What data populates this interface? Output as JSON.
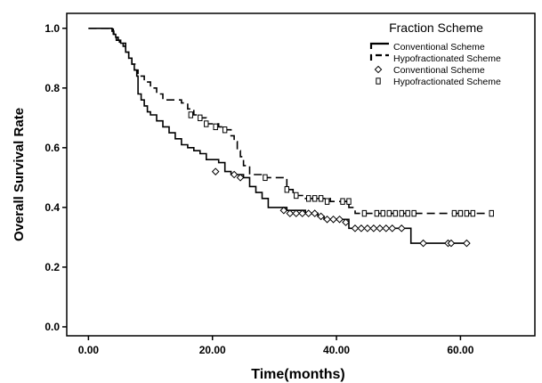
{
  "chart_data": {
    "type": "line",
    "title": "",
    "xlabel": "Time(months)",
    "ylabel": "Overall Survival Rate",
    "xlim": [
      -3.5,
      72
    ],
    "ylim": [
      -0.03,
      1.05
    ],
    "x_ticks": [
      0,
      20,
      40,
      60
    ],
    "x_tick_labels": [
      "0.00",
      "20.00",
      "40.00",
      "60.00"
    ],
    "y_ticks": [
      0,
      0.2,
      0.4,
      0.6,
      0.8,
      1.0
    ],
    "y_tick_labels": [
      "0.0",
      "0.2",
      "0.4",
      "0.6",
      "0.8",
      "1.0"
    ],
    "grid": false,
    "legend_title": "Fraction Scheme",
    "legend_position": "top-right",
    "legend": [
      {
        "label": "Conventional Scheme",
        "kind": "line-solid"
      },
      {
        "label": "Hypofractionated Scheme",
        "kind": "line-dashed"
      },
      {
        "label": "Conventional Scheme",
        "kind": "marker-diamond"
      },
      {
        "label": "Hypofractionated Scheme",
        "kind": "marker-square"
      }
    ],
    "series": [
      {
        "name": "Conventional Scheme",
        "style": "solid",
        "censor_marker": "diamond",
        "steps": [
          [
            0,
            1.0
          ],
          [
            3.8,
            0.99
          ],
          [
            4.1,
            0.98
          ],
          [
            4.4,
            0.97
          ],
          [
            4.8,
            0.96
          ],
          [
            5.2,
            0.95
          ],
          [
            5.6,
            0.94
          ],
          [
            6.0,
            0.92
          ],
          [
            6.5,
            0.9
          ],
          [
            7.0,
            0.88
          ],
          [
            7.4,
            0.86
          ],
          [
            7.8,
            0.84
          ],
          [
            8.0,
            0.78
          ],
          [
            8.5,
            0.76
          ],
          [
            9.0,
            0.74
          ],
          [
            9.5,
            0.72
          ],
          [
            10.0,
            0.71
          ],
          [
            11.0,
            0.69
          ],
          [
            12.0,
            0.67
          ],
          [
            13.0,
            0.65
          ],
          [
            14.0,
            0.63
          ],
          [
            15.0,
            0.61
          ],
          [
            16.0,
            0.6
          ],
          [
            17.0,
            0.59
          ],
          [
            18.0,
            0.58
          ],
          [
            19.0,
            0.56
          ],
          [
            21.0,
            0.55
          ],
          [
            22.0,
            0.52
          ],
          [
            23.0,
            0.51
          ],
          [
            25.0,
            0.5
          ],
          [
            26.0,
            0.47
          ],
          [
            27.0,
            0.45
          ],
          [
            28.0,
            0.43
          ],
          [
            29.0,
            0.4
          ],
          [
            32.0,
            0.39
          ],
          [
            35.0,
            0.38
          ],
          [
            37.0,
            0.37
          ],
          [
            38.0,
            0.36
          ],
          [
            42.0,
            0.33
          ],
          [
            52.0,
            0.28
          ],
          [
            61.0,
            0.28
          ]
        ],
        "censored": [
          [
            20.5,
            0.52
          ],
          [
            23.5,
            0.51
          ],
          [
            24.5,
            0.5
          ],
          [
            31.5,
            0.39
          ],
          [
            32.5,
            0.38
          ],
          [
            33.5,
            0.38
          ],
          [
            34.5,
            0.38
          ],
          [
            35.5,
            0.38
          ],
          [
            36.5,
            0.38
          ],
          [
            37.5,
            0.37
          ],
          [
            38.5,
            0.36
          ],
          [
            39.5,
            0.36
          ],
          [
            40.5,
            0.36
          ],
          [
            41.5,
            0.35
          ],
          [
            43.0,
            0.33
          ],
          [
            44.0,
            0.33
          ],
          [
            45.0,
            0.33
          ],
          [
            46.0,
            0.33
          ],
          [
            47.0,
            0.33
          ],
          [
            48.0,
            0.33
          ],
          [
            49.0,
            0.33
          ],
          [
            50.5,
            0.33
          ],
          [
            54.0,
            0.28
          ],
          [
            58.0,
            0.28
          ],
          [
            58.5,
            0.28
          ],
          [
            61.0,
            0.28
          ]
        ]
      },
      {
        "name": "Hypofractionated Scheme",
        "style": "dashed",
        "censor_marker": "square",
        "steps": [
          [
            0,
            1.0
          ],
          [
            4.0,
            0.98
          ],
          [
            4.5,
            0.96
          ],
          [
            5.0,
            0.95
          ],
          [
            6.0,
            0.92
          ],
          [
            6.5,
            0.9
          ],
          [
            7.0,
            0.88
          ],
          [
            7.5,
            0.86
          ],
          [
            8.0,
            0.84
          ],
          [
            9.0,
            0.82
          ],
          [
            10.0,
            0.8
          ],
          [
            11.0,
            0.78
          ],
          [
            12.0,
            0.76
          ],
          [
            15.0,
            0.75
          ],
          [
            16.0,
            0.73
          ],
          [
            17.0,
            0.71
          ],
          [
            18.0,
            0.7
          ],
          [
            19.0,
            0.68
          ],
          [
            21.0,
            0.67
          ],
          [
            22.0,
            0.66
          ],
          [
            23.0,
            0.64
          ],
          [
            23.5,
            0.62
          ],
          [
            24.0,
            0.59
          ],
          [
            24.5,
            0.57
          ],
          [
            25.0,
            0.54
          ],
          [
            26.0,
            0.51
          ],
          [
            28.0,
            0.5
          ],
          [
            32.0,
            0.46
          ],
          [
            33.0,
            0.44
          ],
          [
            35.0,
            0.43
          ],
          [
            39.0,
            0.42
          ],
          [
            42.0,
            0.4
          ],
          [
            43.0,
            0.38
          ],
          [
            65.0,
            0.38
          ]
        ],
        "censored": [
          [
            16.5,
            0.71
          ],
          [
            18.0,
            0.7
          ],
          [
            19.0,
            0.68
          ],
          [
            20.5,
            0.67
          ],
          [
            22.0,
            0.66
          ],
          [
            28.5,
            0.5
          ],
          [
            32.0,
            0.46
          ],
          [
            33.5,
            0.44
          ],
          [
            35.5,
            0.43
          ],
          [
            36.5,
            0.43
          ],
          [
            37.5,
            0.43
          ],
          [
            38.5,
            0.42
          ],
          [
            41.0,
            0.42
          ],
          [
            42.0,
            0.42
          ],
          [
            44.5,
            0.38
          ],
          [
            46.5,
            0.38
          ],
          [
            47.5,
            0.38
          ],
          [
            48.5,
            0.38
          ],
          [
            49.5,
            0.38
          ],
          [
            50.5,
            0.38
          ],
          [
            51.5,
            0.38
          ],
          [
            52.5,
            0.38
          ],
          [
            59.0,
            0.38
          ],
          [
            60.0,
            0.38
          ],
          [
            61.0,
            0.38
          ],
          [
            62.0,
            0.38
          ],
          [
            65.0,
            0.38
          ]
        ]
      }
    ]
  }
}
